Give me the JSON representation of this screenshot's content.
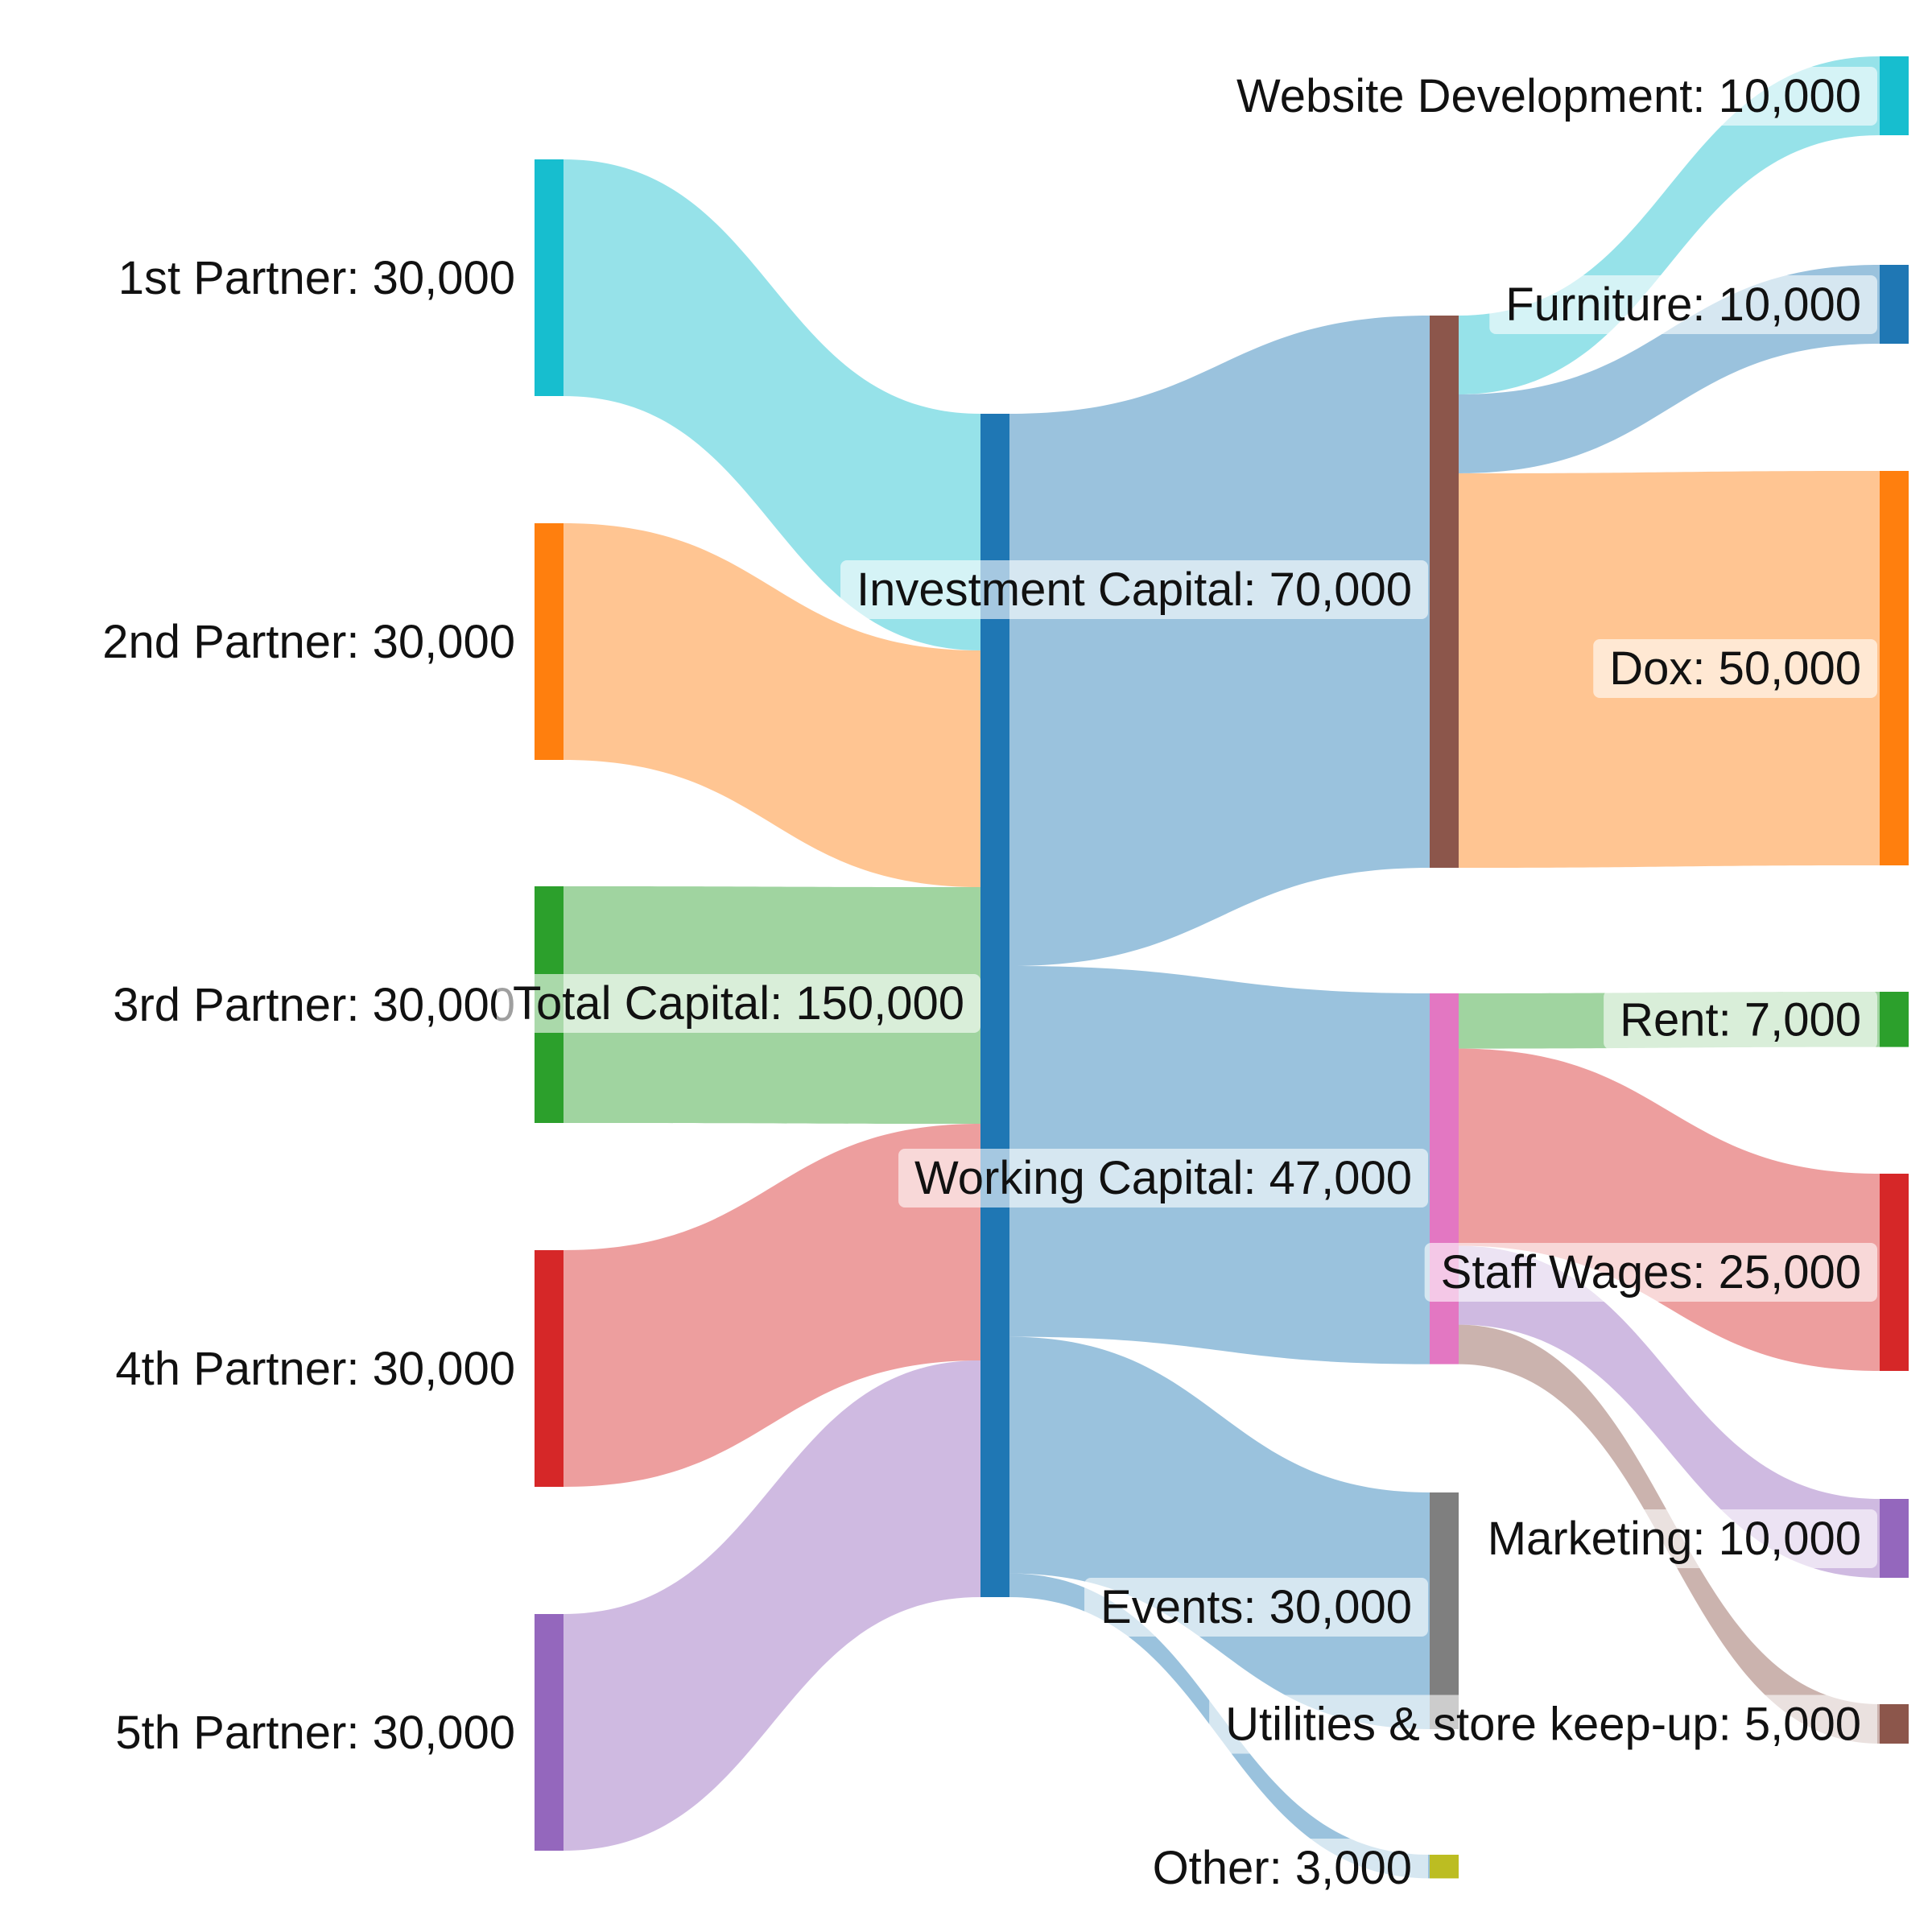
{
  "chart_data": {
    "type": "sankey",
    "nodes": [
      {
        "id": "p1",
        "label": "1st Partner: 30,000",
        "value": 30000,
        "color": "#17becf"
      },
      {
        "id": "p2",
        "label": "2nd Partner: 30,000",
        "value": 30000,
        "color": "#ff7f0e"
      },
      {
        "id": "p3",
        "label": "3rd Partner: 30,000",
        "value": 30000,
        "color": "#2ca02c"
      },
      {
        "id": "p4",
        "label": "4th Partner: 30,000",
        "value": 30000,
        "color": "#d62728"
      },
      {
        "id": "p5",
        "label": "5th Partner: 30,000",
        "value": 30000,
        "color": "#9467bd"
      },
      {
        "id": "total",
        "label": "Total Capital: 150,000",
        "value": 150000,
        "color": "#1f77b4"
      },
      {
        "id": "inv",
        "label": "Investment Capital: 70,000",
        "value": 70000,
        "color": "#8c564b"
      },
      {
        "id": "work",
        "label": "Working Capital: 47,000",
        "value": 47000,
        "color": "#e377c2"
      },
      {
        "id": "events",
        "label": "Events: 30,000",
        "value": 30000,
        "color": "#7f7f7f"
      },
      {
        "id": "other",
        "label": "Other: 3,000",
        "value": 3000,
        "color": "#bcbd22"
      },
      {
        "id": "web",
        "label": "Website Development: 10,000",
        "value": 10000,
        "color": "#17becf"
      },
      {
        "id": "furn",
        "label": "Furniture: 10,000",
        "value": 10000,
        "color": "#1f77b4"
      },
      {
        "id": "dox",
        "label": "Dox: 50,000",
        "value": 50000,
        "color": "#ff7f0e"
      },
      {
        "id": "rent",
        "label": "Rent: 7,000",
        "value": 7000,
        "color": "#2ca02c"
      },
      {
        "id": "wages",
        "label": "Staff Wages: 25,000",
        "value": 25000,
        "color": "#d62728"
      },
      {
        "id": "mkt",
        "label": "Marketing: 10,000",
        "value": 10000,
        "color": "#9467bd"
      },
      {
        "id": "util",
        "label": "Utilities & store keep-up: 5,000",
        "value": 5000,
        "color": "#8c564b"
      }
    ],
    "links": [
      {
        "source": "p1",
        "target": "total",
        "value": 30000
      },
      {
        "source": "p2",
        "target": "total",
        "value": 30000
      },
      {
        "source": "p3",
        "target": "total",
        "value": 30000
      },
      {
        "source": "p4",
        "target": "total",
        "value": 30000
      },
      {
        "source": "p5",
        "target": "total",
        "value": 30000
      },
      {
        "source": "total",
        "target": "inv",
        "value": 70000
      },
      {
        "source": "total",
        "target": "work",
        "value": 47000
      },
      {
        "source": "total",
        "target": "events",
        "value": 30000
      },
      {
        "source": "total",
        "target": "other",
        "value": 3000
      },
      {
        "source": "inv",
        "target": "web",
        "value": 10000
      },
      {
        "source": "inv",
        "target": "furn",
        "value": 10000
      },
      {
        "source": "inv",
        "target": "dox",
        "value": 50000
      },
      {
        "source": "work",
        "target": "rent",
        "value": 7000
      },
      {
        "source": "work",
        "target": "wages",
        "value": 25000
      },
      {
        "source": "work",
        "target": "mkt",
        "value": 10000
      },
      {
        "source": "work",
        "target": "util",
        "value": 5000
      }
    ]
  }
}
